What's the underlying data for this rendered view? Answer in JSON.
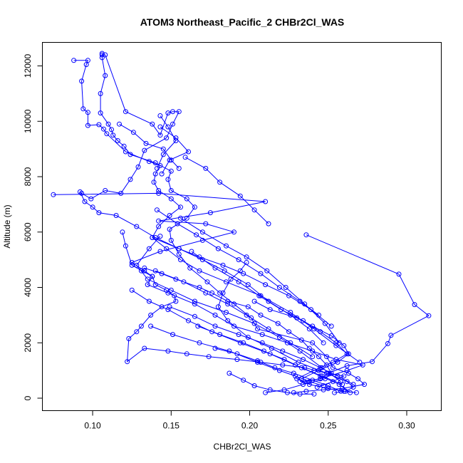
{
  "chart_data": {
    "type": "line",
    "title": "ATOM3 Northeast_Pacific_2 CHBr2Cl_WAS",
    "xlabel": "CHBr2Cl_WAS",
    "ylabel": "Altitude (m)",
    "xlim": [
      0.068,
      0.322
    ],
    "ylim": [
      -450,
      12850
    ],
    "xticks": [
      0.1,
      0.15,
      0.2,
      0.25,
      0.3
    ],
    "xtick_labels": [
      "0.10",
      "0.15",
      "0.20",
      "0.25",
      "0.30"
    ],
    "yticks": [
      0,
      2000,
      4000,
      6000,
      8000,
      10000,
      12000
    ],
    "ytick_labels": [
      "0",
      "2000",
      "4000",
      "6000",
      "8000",
      "10000",
      "12000"
    ],
    "grid": false,
    "legend": "none",
    "color": "#0000ff",
    "series": [
      {
        "x": [
          0.106,
          0.106,
          0.108,
          0.105,
          0.105,
          0.11,
          0.112,
          0.113,
          0.116,
          0.12,
          0.124,
          0.14,
          0.15,
          0.148,
          0.15,
          0.16,
          0.165,
          0.16,
          0.149,
          0.15,
          0.155,
          0.162,
          0.173,
          0.181,
          0.19,
          0.201,
          0.205,
          0.24,
          0.249,
          0.253,
          0.263,
          0.269,
          0.273,
          0.259,
          0.247,
          0.236,
          0.228
        ],
        "y": [
          12450,
          12300,
          11650,
          11000,
          10300,
          9900,
          9700,
          9500,
          9300,
          9100,
          8800,
          8500,
          8200,
          7900,
          7500,
          7200,
          6900,
          6500,
          6100,
          5700,
          5200,
          4700,
          4200,
          3800,
          3400,
          2900,
          2500,
          2000,
          1500,
          1100,
          900,
          700,
          500,
          350,
          300,
          250,
          200
        ]
      },
      {
        "x": [
          0.088,
          0.097,
          0.096,
          0.093,
          0.094,
          0.097,
          0.097,
          0.104,
          0.107,
          0.109,
          0.121,
          0.136,
          0.143,
          0.14,
          0.139,
          0.142,
          0.15,
          0.156,
          0.149,
          0.142,
          0.138,
          0.147,
          0.156,
          0.168,
          0.185,
          0.207,
          0.226,
          0.241,
          0.255,
          0.27
        ],
        "y": [
          12200,
          12200,
          12050,
          11450,
          10450,
          10320,
          9850,
          9880,
          9720,
          9550,
          8900,
          8550,
          8400,
          8100,
          7800,
          7500,
          7200,
          6900,
          6600,
          6200,
          5800,
          5400,
          5000,
          4600,
          4200,
          3700,
          3100,
          2500,
          1900,
          1300
        ]
      },
      {
        "x": [
          0.106,
          0.108,
          0.121,
          0.138,
          0.143,
          0.148,
          0.151,
          0.155,
          0.151,
          0.147,
          0.133,
          0.129,
          0.124,
          0.118,
          0.108,
          0.099,
          0.093,
          0.092,
          0.095,
          0.1,
          0.104,
          0.115,
          0.128,
          0.14,
          0.155,
          0.17,
          0.184,
          0.199,
          0.212,
          0.226,
          0.238,
          0.247
        ],
        "y": [
          12400,
          12400,
          10350,
          9900,
          9500,
          10300,
          10350,
          10350,
          9900,
          9400,
          8950,
          8350,
          7900,
          7400,
          7500,
          7200,
          7400,
          7450,
          7100,
          6900,
          6700,
          6600,
          6200,
          5800,
          5400,
          5000,
          4600,
          4100,
          3500,
          3000,
          2500,
          2000
        ]
      },
      {
        "x": [
          0.075,
          0.142,
          0.21,
          0.175,
          0.142,
          0.172,
          0.19,
          0.17,
          0.143,
          0.125,
          0.133,
          0.138,
          0.135,
          0.148,
          0.165,
          0.178,
          0.19,
          0.208,
          0.224,
          0.24,
          0.255,
          0.272,
          0.262,
          0.245,
          0.232
        ],
        "y": [
          7350,
          7400,
          7100,
          6700,
          6400,
          6300,
          6000,
          5700,
          5300,
          4900,
          4600,
          4400,
          4100,
          3800,
          3400,
          3000,
          2600,
          2300,
          2000,
          1700,
          1400,
          1200,
          1000,
          700,
          600
        ]
      },
      {
        "x": [
          0.236,
          0.295,
          0.305,
          0.314,
          0.29,
          0.288,
          0.278,
          0.262,
          0.25,
          0.245,
          0.235
        ],
        "y": [
          5900,
          4480,
          3380,
          2980,
          2270,
          1970,
          1320,
          1170,
          900,
          700,
          600
        ]
      },
      {
        "x": [
          0.119,
          0.121,
          0.125,
          0.138,
          0.14,
          0.147,
          0.152,
          0.153,
          0.144,
          0.137,
          0.131,
          0.128,
          0.123,
          0.122,
          0.133,
          0.148,
          0.16,
          0.174,
          0.192,
          0.207,
          0.221,
          0.235,
          0.249,
          0.26,
          0.253,
          0.243
        ],
        "y": [
          6000,
          5500,
          4800,
          4400,
          4100,
          3900,
          3700,
          3500,
          3300,
          3000,
          2600,
          2400,
          2150,
          1320,
          1800,
          1700,
          1600,
          1500,
          1400,
          1300,
          1200,
          1100,
          900,
          800,
          600,
          400
        ]
      },
      {
        "x": [
          0.131,
          0.133,
          0.144,
          0.153,
          0.168,
          0.176,
          0.186,
          0.199,
          0.207,
          0.218,
          0.225,
          0.233,
          0.238,
          0.244,
          0.249,
          0.252,
          0.248,
          0.234,
          0.222,
          0.21
        ],
        "y": [
          4600,
          4700,
          4500,
          4300,
          4000,
          3800,
          3500,
          3300,
          3000,
          2700,
          2400,
          2100,
          1800,
          1500,
          1200,
          900,
          700,
          500,
          300,
          200
        ]
      },
      {
        "x": [
          0.203,
          0.213,
          0.23,
          0.24,
          0.252,
          0.26,
          0.263,
          0.256,
          0.244,
          0.233
        ],
        "y": [
          3500,
          3200,
          2900,
          2600,
          2250,
          1900,
          1600,
          1300,
          1000,
          700
        ]
      },
      {
        "x": [
          0.198,
          0.194,
          0.188,
          0.183,
          0.18,
          0.186,
          0.199,
          0.214,
          0.231,
          0.249,
          0.262,
          0.266,
          0.261,
          0.254
        ],
        "y": [
          4900,
          4600,
          4300,
          3800,
          3300,
          2800,
          2200,
          1800,
          1300,
          900,
          600,
          400,
          250,
          200
        ]
      },
      {
        "x": [
          0.163,
          0.178,
          0.193,
          0.206,
          0.22,
          0.234,
          0.245,
          0.255,
          0.262,
          0.253,
          0.241,
          0.23,
          0.238,
          0.25,
          0.26,
          0.268
        ],
        "y": [
          5300,
          4700,
          4200,
          3700,
          3200,
          2800,
          2400,
          2000,
          1600,
          1300,
          1000,
          700,
          500,
          350,
          250,
          200
        ]
      },
      {
        "x": [
          0.143,
          0.136,
          0.128,
          0.135,
          0.15,
          0.165,
          0.185,
          0.203,
          0.219,
          0.232,
          0.246,
          0.258
        ],
        "y": [
          5850,
          5400,
          4800,
          4300,
          3900,
          3500,
          3100,
          2700,
          2200,
          1700,
          1100,
          600
        ]
      },
      {
        "x": [
          0.156,
          0.17,
          0.185,
          0.198,
          0.211,
          0.223,
          0.235,
          0.248,
          0.257
        ],
        "y": [
          6500,
          6000,
          5500,
          5100,
          4600,
          4000,
          3400,
          2700,
          2000
        ]
      },
      {
        "x": [
          0.141,
          0.154,
          0.166,
          0.18,
          0.193,
          0.207,
          0.219,
          0.232,
          0.244
        ],
        "y": [
          6800,
          6300,
          5900,
          5400,
          5000,
          4500,
          4000,
          3500,
          3000
        ]
      },
      {
        "x": [
          0.159,
          0.172,
          0.181,
          0.194,
          0.203,
          0.212
        ],
        "y": [
          8700,
          8300,
          7800,
          7300,
          6800,
          6300
        ]
      },
      {
        "x": [
          0.143,
          0.153,
          0.161,
          0.149,
          0.144
        ],
        "y": [
          9800,
          9400,
          8900,
          8600,
          8100
        ]
      },
      {
        "x": [
          0.117,
          0.126,
          0.134,
          0.145,
          0.15,
          0.155
        ],
        "y": [
          9900,
          9600,
          9200,
          9000,
          8600,
          8300
        ]
      },
      {
        "x": [
          0.143,
          0.148,
          0.153,
          0.145,
          0.141
        ],
        "y": [
          10200,
          9800,
          9300,
          8800,
          8300
        ]
      },
      {
        "x": [
          0.138,
          0.155,
          0.168,
          0.183,
          0.196,
          0.21,
          0.225,
          0.239,
          0.252
        ],
        "y": [
          5800,
          5400,
          5100,
          4800,
          4500,
          4100,
          3700,
          3200,
          2600
        ]
      },
      {
        "x": [
          0.14,
          0.158,
          0.172,
          0.186,
          0.198,
          0.212,
          0.226,
          0.24
        ],
        "y": [
          4600,
          4200,
          3800,
          3400,
          3000,
          2500,
          2000,
          1500
        ]
      },
      {
        "x": [
          0.125,
          0.136,
          0.148,
          0.161,
          0.176,
          0.194,
          0.213,
          0.229,
          0.246,
          0.259
        ],
        "y": [
          3900,
          3500,
          3200,
          2800,
          2400,
          2000,
          1600,
          1200,
          800,
          500
        ]
      },
      {
        "x": [
          0.149,
          0.165,
          0.178,
          0.193,
          0.208,
          0.221,
          0.234,
          0.245,
          0.256,
          0.266
        ],
        "y": [
          3300,
          2950,
          2600,
          2300,
          2000,
          1700,
          1400,
          1100,
          800,
          500
        ]
      },
      {
        "x": [
          0.137,
          0.151,
          0.168,
          0.187,
          0.205,
          0.219,
          0.229,
          0.238,
          0.247
        ],
        "y": [
          2600,
          2300,
          2000,
          1700,
          1300,
          1000,
          800,
          600,
          450
        ]
      },
      {
        "x": [
          0.167,
          0.181,
          0.196,
          0.209,
          0.222,
          0.233,
          0.245,
          0.257,
          0.264
        ],
        "y": [
          2600,
          2300,
          2000,
          1700,
          1400,
          1100,
          800,
          500,
          200
        ]
      },
      {
        "x": [
          0.178,
          0.192,
          0.205,
          0.216,
          0.228,
          0.24,
          0.25,
          0.258
        ],
        "y": [
          1800,
          1600,
          1350,
          1100,
          900,
          650,
          450,
          250
        ]
      },
      {
        "x": [
          0.187,
          0.196,
          0.203,
          0.213,
          0.224,
          0.232,
          0.241
        ],
        "y": [
          900,
          650,
          450,
          300,
          200,
          150,
          150
        ]
      }
    ]
  }
}
